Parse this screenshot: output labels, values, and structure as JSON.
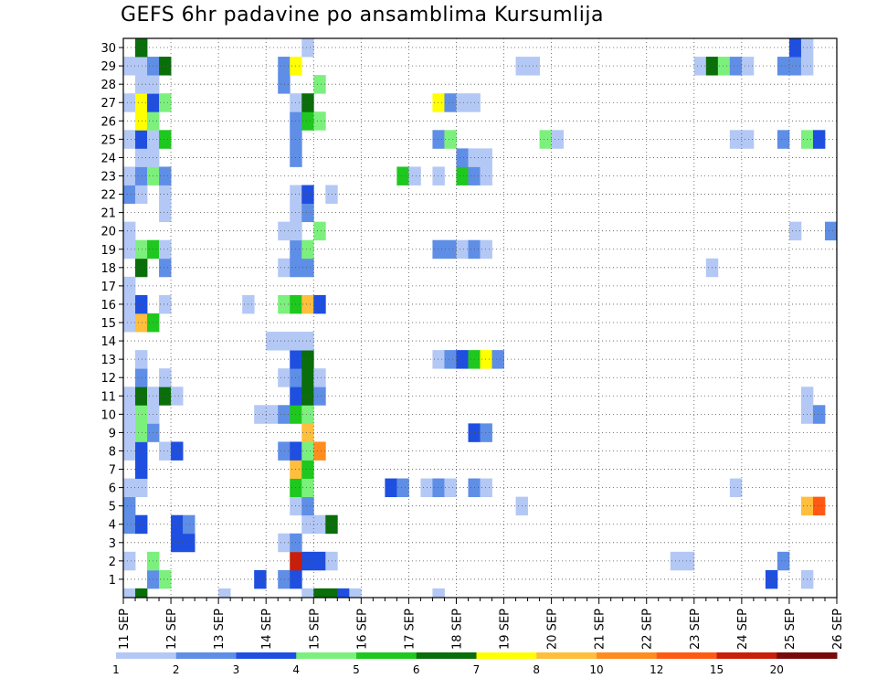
{
  "chart_data": {
    "type": "heatmap",
    "title": "GEFS 6hr padavine po ansamblima Kursumlija",
    "x_tick_labels": [
      "11 SEP",
      "12 SEP",
      "13 SEP",
      "14 SEP",
      "15 SEP",
      "16 SEP",
      "17 SEP",
      "18 SEP",
      "19 SEP",
      "20 SEP",
      "21 SEP",
      "22 SEP",
      "23 SEP",
      "24 SEP",
      "25 SEP",
      "26 SEP"
    ],
    "y_tick_labels": [
      "1",
      "2",
      "3",
      "4",
      "5",
      "6",
      "7",
      "8",
      "9",
      "10",
      "11",
      "12",
      "13",
      "14",
      "15",
      "16",
      "17",
      "18",
      "19",
      "20",
      "21",
      "22",
      "23",
      "24",
      "25",
      "26",
      "27",
      "28",
      "29",
      "30"
    ],
    "xlim": [
      0,
      60
    ],
    "ylim": [
      0,
      30
    ],
    "grid": true,
    "colorbar": {
      "labels": [
        "1",
        "2",
        "3",
        "4",
        "5",
        "6",
        "7",
        "8",
        "10",
        "12",
        "15",
        "20"
      ],
      "colors": [
        "#b4c8f5",
        "#5f8ee6",
        "#1f4fe0",
        "#7cf07c",
        "#1ec81e",
        "#0a6e0a",
        "#ffff00",
        "#ffbe3c",
        "#ff8c1e",
        "#ff5a14",
        "#c81e0a",
        "#780a0a"
      ]
    },
    "cells": [
      {
        "x": 0,
        "y": 0,
        "c": 0
      },
      {
        "x": 1,
        "y": 0,
        "c": 5
      },
      {
        "x": 8,
        "y": 0,
        "c": 0
      },
      {
        "x": 15,
        "y": 0,
        "c": 0
      },
      {
        "x": 16,
        "y": 0,
        "c": 5
      },
      {
        "x": 17,
        "y": 0,
        "c": 5
      },
      {
        "x": 18,
        "y": 0,
        "c": 2
      },
      {
        "x": 19,
        "y": 0,
        "c": 0
      },
      {
        "x": 26,
        "y": 0,
        "c": 0
      },
      {
        "x": 2,
        "y": 1,
        "c": 1
      },
      {
        "x": 3,
        "y": 1,
        "c": 3
      },
      {
        "x": 11,
        "y": 1,
        "c": 2
      },
      {
        "x": 13,
        "y": 1,
        "c": 1
      },
      {
        "x": 14,
        "y": 1,
        "c": 2
      },
      {
        "x": 54,
        "y": 1,
        "c": 2
      },
      {
        "x": 57,
        "y": 1,
        "c": 0
      },
      {
        "x": 0,
        "y": 2,
        "c": 0
      },
      {
        "x": 2,
        "y": 2,
        "c": 3
      },
      {
        "x": 14,
        "y": 2,
        "c": 10
      },
      {
        "x": 15,
        "y": 2,
        "c": 2
      },
      {
        "x": 16,
        "y": 2,
        "c": 2
      },
      {
        "x": 17,
        "y": 2,
        "c": 0
      },
      {
        "x": 46,
        "y": 2,
        "c": 0
      },
      {
        "x": 47,
        "y": 2,
        "c": 0
      },
      {
        "x": 55,
        "y": 2,
        "c": 1
      },
      {
        "x": 4,
        "y": 3,
        "c": 2
      },
      {
        "x": 5,
        "y": 3,
        "c": 2
      },
      {
        "x": 13,
        "y": 3,
        "c": 0
      },
      {
        "x": 14,
        "y": 3,
        "c": 1
      },
      {
        "x": 0,
        "y": 4,
        "c": 1
      },
      {
        "x": 1,
        "y": 4,
        "c": 2
      },
      {
        "x": 4,
        "y": 4,
        "c": 2
      },
      {
        "x": 5,
        "y": 4,
        "c": 1
      },
      {
        "x": 15,
        "y": 4,
        "c": 0
      },
      {
        "x": 16,
        "y": 4,
        "c": 0
      },
      {
        "x": 17,
        "y": 4,
        "c": 5
      },
      {
        "x": 0,
        "y": 5,
        "c": 1
      },
      {
        "x": 14,
        "y": 5,
        "c": 0
      },
      {
        "x": 15,
        "y": 5,
        "c": 1
      },
      {
        "x": 33,
        "y": 5,
        "c": 0
      },
      {
        "x": 57,
        "y": 5,
        "c": 7
      },
      {
        "x": 58,
        "y": 5,
        "c": 9
      },
      {
        "x": 0,
        "y": 6,
        "c": 0
      },
      {
        "x": 1,
        "y": 6,
        "c": 0
      },
      {
        "x": 14,
        "y": 6,
        "c": 4
      },
      {
        "x": 15,
        "y": 6,
        "c": 3
      },
      {
        "x": 22,
        "y": 6,
        "c": 2
      },
      {
        "x": 23,
        "y": 6,
        "c": 1
      },
      {
        "x": 25,
        "y": 6,
        "c": 0
      },
      {
        "x": 26,
        "y": 6,
        "c": 1
      },
      {
        "x": 27,
        "y": 6,
        "c": 0
      },
      {
        "x": 29,
        "y": 6,
        "c": 1
      },
      {
        "x": 30,
        "y": 6,
        "c": 0
      },
      {
        "x": 51,
        "y": 6,
        "c": 0
      },
      {
        "x": 1,
        "y": 7,
        "c": 2
      },
      {
        "x": 14,
        "y": 7,
        "c": 7
      },
      {
        "x": 15,
        "y": 7,
        "c": 4
      },
      {
        "x": 0,
        "y": 8,
        "c": 0
      },
      {
        "x": 1,
        "y": 8,
        "c": 2
      },
      {
        "x": 3,
        "y": 8,
        "c": 0
      },
      {
        "x": 4,
        "y": 8,
        "c": 2
      },
      {
        "x": 13,
        "y": 8,
        "c": 1
      },
      {
        "x": 14,
        "y": 8,
        "c": 2
      },
      {
        "x": 15,
        "y": 8,
        "c": 3
      },
      {
        "x": 16,
        "y": 8,
        "c": 8
      },
      {
        "x": 0,
        "y": 9,
        "c": 0
      },
      {
        "x": 1,
        "y": 9,
        "c": 3
      },
      {
        "x": 2,
        "y": 9,
        "c": 1
      },
      {
        "x": 15,
        "y": 9,
        "c": 7
      },
      {
        "x": 29,
        "y": 9,
        "c": 2
      },
      {
        "x": 30,
        "y": 9,
        "c": 1
      },
      {
        "x": 0,
        "y": 10,
        "c": 0
      },
      {
        "x": 1,
        "y": 10,
        "c": 3
      },
      {
        "x": 2,
        "y": 10,
        "c": 0
      },
      {
        "x": 11,
        "y": 10,
        "c": 0
      },
      {
        "x": 12,
        "y": 10,
        "c": 0
      },
      {
        "x": 13,
        "y": 10,
        "c": 1
      },
      {
        "x": 14,
        "y": 10,
        "c": 4
      },
      {
        "x": 15,
        "y": 10,
        "c": 3
      },
      {
        "x": 57,
        "y": 10,
        "c": 0
      },
      {
        "x": 58,
        "y": 10,
        "c": 1
      },
      {
        "x": 0,
        "y": 11,
        "c": 0
      },
      {
        "x": 1,
        "y": 11,
        "c": 5
      },
      {
        "x": 2,
        "y": 11,
        "c": 0
      },
      {
        "x": 3,
        "y": 11,
        "c": 5
      },
      {
        "x": 4,
        "y": 11,
        "c": 0
      },
      {
        "x": 14,
        "y": 11,
        "c": 2
      },
      {
        "x": 15,
        "y": 11,
        "c": 5
      },
      {
        "x": 16,
        "y": 11,
        "c": 1
      },
      {
        "x": 57,
        "y": 11,
        "c": 0
      },
      {
        "x": 1,
        "y": 12,
        "c": 1
      },
      {
        "x": 3,
        "y": 12,
        "c": 0
      },
      {
        "x": 13,
        "y": 12,
        "c": 0
      },
      {
        "x": 14,
        "y": 12,
        "c": 1
      },
      {
        "x": 15,
        "y": 12,
        "c": 5
      },
      {
        "x": 16,
        "y": 12,
        "c": 0
      },
      {
        "x": 1,
        "y": 13,
        "c": 0
      },
      {
        "x": 14,
        "y": 13,
        "c": 2
      },
      {
        "x": 15,
        "y": 13,
        "c": 5
      },
      {
        "x": 26,
        "y": 13,
        "c": 0
      },
      {
        "x": 27,
        "y": 13,
        "c": 1
      },
      {
        "x": 28,
        "y": 13,
        "c": 2
      },
      {
        "x": 29,
        "y": 13,
        "c": 4
      },
      {
        "x": 30,
        "y": 13,
        "c": 6
      },
      {
        "x": 31,
        "y": 13,
        "c": 1
      },
      {
        "x": 12,
        "y": 14,
        "c": 0
      },
      {
        "x": 13,
        "y": 14,
        "c": 0
      },
      {
        "x": 14,
        "y": 14,
        "c": 0
      },
      {
        "x": 15,
        "y": 14,
        "c": 0
      },
      {
        "x": 0,
        "y": 15,
        "c": 0
      },
      {
        "x": 1,
        "y": 15,
        "c": 7
      },
      {
        "x": 2,
        "y": 15,
        "c": 4
      },
      {
        "x": 0,
        "y": 16,
        "c": 0
      },
      {
        "x": 1,
        "y": 16,
        "c": 2
      },
      {
        "x": 3,
        "y": 16,
        "c": 0
      },
      {
        "x": 10,
        "y": 16,
        "c": 0
      },
      {
        "x": 13,
        "y": 16,
        "c": 3
      },
      {
        "x": 14,
        "y": 16,
        "c": 4
      },
      {
        "x": 15,
        "y": 16,
        "c": 7
      },
      {
        "x": 16,
        "y": 16,
        "c": 2
      },
      {
        "x": 0,
        "y": 17,
        "c": 0
      },
      {
        "x": 1,
        "y": 18,
        "c": 5
      },
      {
        "x": 3,
        "y": 18,
        "c": 1
      },
      {
        "x": 13,
        "y": 18,
        "c": 0
      },
      {
        "x": 14,
        "y": 18,
        "c": 1
      },
      {
        "x": 15,
        "y": 18,
        "c": 1
      },
      {
        "x": 49,
        "y": 18,
        "c": 0
      },
      {
        "x": 0,
        "y": 19,
        "c": 0
      },
      {
        "x": 1,
        "y": 19,
        "c": 3
      },
      {
        "x": 2,
        "y": 19,
        "c": 4
      },
      {
        "x": 3,
        "y": 19,
        "c": 0
      },
      {
        "x": 14,
        "y": 19,
        "c": 1
      },
      {
        "x": 15,
        "y": 19,
        "c": 3
      },
      {
        "x": 26,
        "y": 19,
        "c": 1
      },
      {
        "x": 27,
        "y": 19,
        "c": 1
      },
      {
        "x": 28,
        "y": 19,
        "c": 0
      },
      {
        "x": 29,
        "y": 19,
        "c": 1
      },
      {
        "x": 30,
        "y": 19,
        "c": 0
      },
      {
        "x": 0,
        "y": 20,
        "c": 0
      },
      {
        "x": 13,
        "y": 20,
        "c": 0
      },
      {
        "x": 14,
        "y": 20,
        "c": 0
      },
      {
        "x": 16,
        "y": 20,
        "c": 3
      },
      {
        "x": 56,
        "y": 20,
        "c": 0
      },
      {
        "x": 59,
        "y": 20,
        "c": 1
      },
      {
        "x": 3,
        "y": 21,
        "c": 0
      },
      {
        "x": 14,
        "y": 21,
        "c": 0
      },
      {
        "x": 15,
        "y": 21,
        "c": 1
      },
      {
        "x": 0,
        "y": 22,
        "c": 1
      },
      {
        "x": 1,
        "y": 22,
        "c": 0
      },
      {
        "x": 3,
        "y": 22,
        "c": 0
      },
      {
        "x": 14,
        "y": 22,
        "c": 0
      },
      {
        "x": 15,
        "y": 22,
        "c": 2
      },
      {
        "x": 17,
        "y": 22,
        "c": 0
      },
      {
        "x": 0,
        "y": 23,
        "c": 0
      },
      {
        "x": 1,
        "y": 23,
        "c": 1
      },
      {
        "x": 2,
        "y": 23,
        "c": 3
      },
      {
        "x": 3,
        "y": 23,
        "c": 1
      },
      {
        "x": 23,
        "y": 23,
        "c": 4
      },
      {
        "x": 24,
        "y": 23,
        "c": 0
      },
      {
        "x": 26,
        "y": 23,
        "c": 0
      },
      {
        "x": 28,
        "y": 23,
        "c": 4
      },
      {
        "x": 29,
        "y": 23,
        "c": 1
      },
      {
        "x": 30,
        "y": 23,
        "c": 0
      },
      {
        "x": 1,
        "y": 24,
        "c": 0
      },
      {
        "x": 2,
        "y": 24,
        "c": 0
      },
      {
        "x": 14,
        "y": 24,
        "c": 1
      },
      {
        "x": 28,
        "y": 24,
        "c": 1
      },
      {
        "x": 29,
        "y": 24,
        "c": 0
      },
      {
        "x": 30,
        "y": 24,
        "c": 0
      },
      {
        "x": 0,
        "y": 25,
        "c": 0
      },
      {
        "x": 1,
        "y": 25,
        "c": 2
      },
      {
        "x": 2,
        "y": 25,
        "c": 0
      },
      {
        "x": 3,
        "y": 25,
        "c": 4
      },
      {
        "x": 14,
        "y": 25,
        "c": 1
      },
      {
        "x": 26,
        "y": 25,
        "c": 1
      },
      {
        "x": 27,
        "y": 25,
        "c": 3
      },
      {
        "x": 35,
        "y": 25,
        "c": 3
      },
      {
        "x": 36,
        "y": 25,
        "c": 0
      },
      {
        "x": 51,
        "y": 25,
        "c": 0
      },
      {
        "x": 52,
        "y": 25,
        "c": 0
      },
      {
        "x": 55,
        "y": 25,
        "c": 1
      },
      {
        "x": 57,
        "y": 25,
        "c": 3
      },
      {
        "x": 58,
        "y": 25,
        "c": 2
      },
      {
        "x": 1,
        "y": 26,
        "c": 6
      },
      {
        "x": 2,
        "y": 26,
        "c": 3
      },
      {
        "x": 14,
        "y": 26,
        "c": 1
      },
      {
        "x": 15,
        "y": 26,
        "c": 4
      },
      {
        "x": 16,
        "y": 26,
        "c": 3
      },
      {
        "x": 0,
        "y": 27,
        "c": 0
      },
      {
        "x": 1,
        "y": 27,
        "c": 6
      },
      {
        "x": 2,
        "y": 27,
        "c": 2
      },
      {
        "x": 3,
        "y": 27,
        "c": 3
      },
      {
        "x": 14,
        "y": 27,
        "c": 0
      },
      {
        "x": 15,
        "y": 27,
        "c": 5
      },
      {
        "x": 26,
        "y": 27,
        "c": 6
      },
      {
        "x": 27,
        "y": 27,
        "c": 1
      },
      {
        "x": 28,
        "y": 27,
        "c": 0
      },
      {
        "x": 29,
        "y": 27,
        "c": 0
      },
      {
        "x": 1,
        "y": 28,
        "c": 0
      },
      {
        "x": 2,
        "y": 28,
        "c": 0
      },
      {
        "x": 13,
        "y": 28,
        "c": 1
      },
      {
        "x": 16,
        "y": 28,
        "c": 3
      },
      {
        "x": 0,
        "y": 29,
        "c": 0
      },
      {
        "x": 1,
        "y": 29,
        "c": 0
      },
      {
        "x": 2,
        "y": 29,
        "c": 1
      },
      {
        "x": 3,
        "y": 29,
        "c": 5
      },
      {
        "x": 13,
        "y": 29,
        "c": 1
      },
      {
        "x": 14,
        "y": 29,
        "c": 6
      },
      {
        "x": 33,
        "y": 29,
        "c": 0
      },
      {
        "x": 34,
        "y": 29,
        "c": 0
      },
      {
        "x": 48,
        "y": 29,
        "c": 0
      },
      {
        "x": 49,
        "y": 29,
        "c": 5
      },
      {
        "x": 50,
        "y": 29,
        "c": 3
      },
      {
        "x": 51,
        "y": 29,
        "c": 1
      },
      {
        "x": 52,
        "y": 29,
        "c": 0
      },
      {
        "x": 55,
        "y": 29,
        "c": 1
      },
      {
        "x": 56,
        "y": 29,
        "c": 1
      },
      {
        "x": 57,
        "y": 29,
        "c": 0
      },
      {
        "x": 1,
        "y": 30,
        "c": 5
      },
      {
        "x": 15,
        "y": 30,
        "c": 0
      },
      {
        "x": 56,
        "y": 30,
        "c": 2
      },
      {
        "x": 57,
        "y": 30,
        "c": 0
      }
    ]
  }
}
